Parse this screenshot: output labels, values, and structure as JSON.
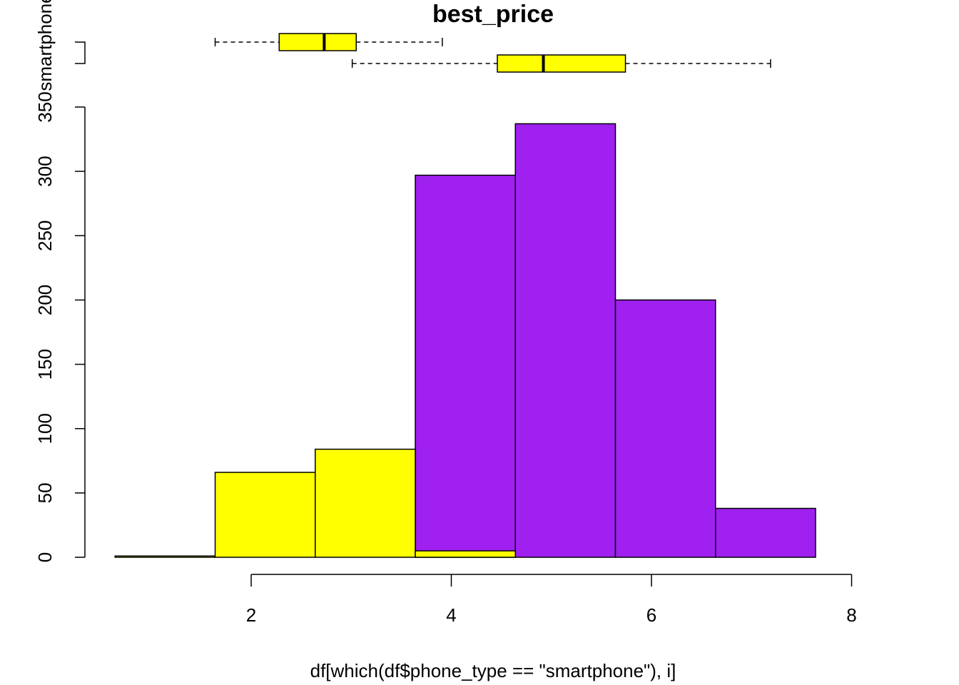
{
  "chart_data": {
    "type": "histogram",
    "title": "best_price",
    "x_label": "df[which(df$phone_type == \"smartphone\"), i]",
    "bins": [
      0.64,
      1.64,
      2.64,
      3.64,
      4.64,
      5.64,
      6.64,
      7.64
    ],
    "series": [
      {
        "color": "#a020f0",
        "values": [
          0,
          0,
          0,
          297,
          337,
          200,
          38
        ]
      },
      {
        "color": "#ffff00",
        "values": [
          1,
          66,
          84,
          5,
          0,
          0,
          0
        ]
      }
    ],
    "boxplots": [
      {
        "name": "smartphone",
        "color": "#ffff00",
        "whisker_low": 1.64,
        "q1": 2.28,
        "median": 2.73,
        "q3": 3.05,
        "whisker_high": 3.91
      },
      {
        "color": "#ffff00",
        "whisker_low": 3.01,
        "q1": 4.46,
        "median": 4.92,
        "q3": 5.74,
        "whisker_high": 7.19
      }
    ],
    "xlim": [
      0.5,
      8.5
    ],
    "xticks": [
      2,
      4,
      6,
      8
    ],
    "ylim": [
      0,
      350
    ],
    "yticks": [
      0,
      50,
      100,
      150,
      200,
      250,
      300,
      350
    ]
  }
}
